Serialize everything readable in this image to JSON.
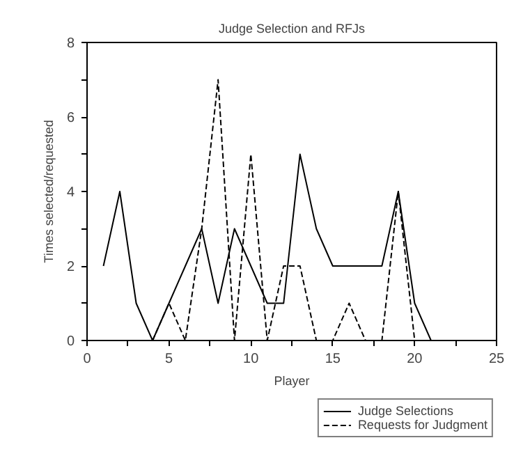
{
  "chart_data": {
    "type": "line",
    "title": "Judge Selection and RFJs",
    "xlabel": "Player",
    "ylabel": "Times selected/requested",
    "xlim": [
      0,
      25
    ],
    "xticks": [
      0,
      {
        "value": 2.5,
        "label": null
      },
      5,
      {
        "value": 7.5,
        "label": null
      },
      10,
      {
        "value": 12.5,
        "label": null
      },
      15,
      {
        "value": 17.5,
        "label": null
      },
      20,
      {
        "value": 22.5,
        "label": null
      },
      25
    ],
    "ylim": [
      0,
      8
    ],
    "yticks": [
      0,
      {
        "value": 1,
        "label": null
      },
      2,
      {
        "value": 3,
        "label": null
      },
      4,
      {
        "value": 5,
        "label": null
      },
      6,
      {
        "value": 7,
        "label": null
      },
      8
    ],
    "grid": false,
    "legend": "bottom right",
    "series": [
      {
        "name": "Judge Selections",
        "color": "#000000",
        "line_style": "solid",
        "x": [
          1,
          2,
          3,
          4,
          5,
          6,
          7,
          8,
          9,
          10,
          11,
          12,
          13,
          14,
          15,
          16,
          17,
          18,
          19,
          20,
          21
        ],
        "values": [
          2,
          4,
          1,
          0,
          1,
          2,
          3,
          1,
          3,
          2,
          1,
          1,
          5,
          3,
          2,
          2,
          2,
          2,
          4,
          1,
          0
        ]
      },
      {
        "name": "Requests for Judgment",
        "color": "#000000",
        "line_style": "dashed",
        "x": [
          4,
          5,
          6,
          7,
          8,
          9,
          10,
          11,
          12,
          13,
          14,
          15,
          16,
          17,
          18,
          19,
          20
        ],
        "values": [
          0,
          1,
          0,
          3,
          7,
          0,
          5,
          0,
          2,
          2,
          0,
          0,
          1,
          0,
          0,
          4,
          0
        ]
      }
    ]
  }
}
